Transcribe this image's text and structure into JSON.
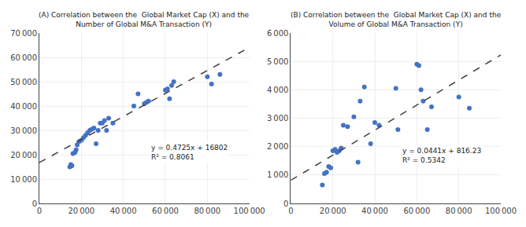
{
  "chart_data": [
    {
      "type": "scatter",
      "title": "(A) Correlation between the  Global Market Cap (X) and the\nNumber of Global M&A Transaction (Y)",
      "annotations": [
        "y = 0.4725x + 16802",
        "R² = 0.8061"
      ],
      "grid": true,
      "xlim": [
        0,
        100000
      ],
      "xticks": [
        0,
        {
          "value": 20000,
          "label": "20 000"
        },
        {
          "value": 40000,
          "label": "40 000"
        },
        {
          "value": 60000,
          "label": "60 000"
        },
        {
          "value": 80000,
          "label": "80 000"
        },
        {
          "value": 100000,
          "label": "100 000"
        }
      ],
      "ylim": [
        0,
        70000
      ],
      "yticks": [
        0,
        {
          "value": 10000,
          "label": "10 000"
        },
        {
          "value": 20000,
          "label": "20 000"
        },
        {
          "value": 30000,
          "label": "30 000"
        },
        {
          "value": 40000,
          "label": "40 000"
        },
        {
          "value": 50000,
          "label": "50 000"
        },
        {
          "value": 60000,
          "label": "60 000"
        },
        {
          "value": 70000,
          "label": "70 000"
        }
      ],
      "series": [
        {
          "type": "scatter",
          "color": "#4472C4",
          "x": [
            14500,
            15000,
            15500,
            16000,
            17000,
            17500,
            18000,
            19000,
            20000,
            21000,
            22000,
            23000,
            24000,
            25000,
            26000,
            27000,
            28000,
            29000,
            30000,
            31000,
            32000,
            33000,
            35000,
            45000,
            47000,
            50000,
            51000,
            52000,
            60000,
            61000,
            62000,
            63000,
            64000,
            80000,
            82000,
            86000
          ],
          "values": [
            15000,
            16000,
            15500,
            20500,
            21000,
            22000,
            24000,
            25500,
            26000,
            27000,
            28000,
            29000,
            30000,
            30500,
            31000,
            24500,
            30000,
            33000,
            33000,
            34000,
            30000,
            35000,
            33000,
            40000,
            45000,
            41000,
            41500,
            42000,
            46500,
            47000,
            43000,
            48500,
            50000,
            52000,
            49000,
            53000
          ]
        },
        {
          "type": "line",
          "color": "#404040",
          "line_style": "dashed",
          "x": [
            0,
            100000
          ],
          "values": [
            16802,
            64052
          ]
        }
      ]
    },
    {
      "type": "scatter",
      "title": "(B) Correlation between the  Global Market Cap (X) and the\nVolume of Global M&A Transaction (Y)",
      "annotations": [
        "y = 0.0441x + 816.23",
        "R² = 0.5342"
      ],
      "grid": true,
      "xlim": [
        0,
        100000
      ],
      "xticks": [
        0,
        {
          "value": 20000,
          "label": "20 000"
        },
        {
          "value": 40000,
          "label": "40 000"
        },
        {
          "value": 60000,
          "label": "60 000"
        },
        {
          "value": 80000,
          "label": "80 000"
        },
        {
          "value": 100000,
          "label": "100 000"
        }
      ],
      "ylim": [
        0,
        6000
      ],
      "yticks": [
        0,
        {
          "value": 1000,
          "label": "1 000"
        },
        {
          "value": 2000,
          "label": "2 000"
        },
        {
          "value": 3000,
          "label": "3 000"
        },
        {
          "value": 4000,
          "label": "4 000"
        },
        {
          "value": 5000,
          "label": "5 000"
        },
        {
          "value": 6000,
          "label": "6 000"
        }
      ],
      "series": [
        {
          "type": "scatter",
          "color": "#4472C4",
          "x": [
            15000,
            16000,
            17000,
            18000,
            19000,
            20000,
            21000,
            22000,
            23000,
            24000,
            25000,
            27000,
            30000,
            32000,
            33000,
            35000,
            38000,
            40000,
            42000,
            50000,
            51000,
            60000,
            61000,
            62000,
            63000,
            65000,
            67000,
            80000,
            85000
          ],
          "values": [
            650,
            1050,
            1100,
            1300,
            1250,
            1850,
            1900,
            1800,
            1850,
            1950,
            2750,
            2700,
            3050,
            1450,
            3600,
            4100,
            2100,
            2850,
            2750,
            4050,
            2600,
            4900,
            4850,
            4000,
            3600,
            2600,
            3400,
            3750,
            3350
          ]
        },
        {
          "type": "line",
          "color": "#404040",
          "line_style": "dashed",
          "x": [
            0,
            100000
          ],
          "values": [
            816.23,
            5226.23
          ]
        }
      ]
    }
  ]
}
